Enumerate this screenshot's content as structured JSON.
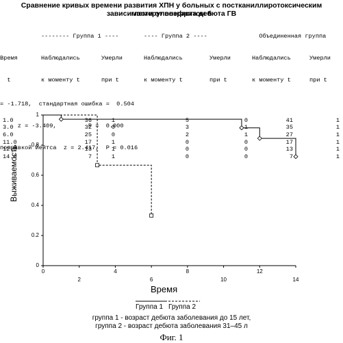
{
  "title_line1": "Сравнение кривых времени развития ХПН у больных с постканиллиротоксическим гломерулонефритом  в",
  "title_line2": "зависимости от возраста дебюта ГВ",
  "table": {
    "group_header": [
      "",
      "-------- Группа 1 ----",
      "",
      "---- Группа 2 ----",
      "",
      "  Объединенная группа",
      ""
    ],
    "header1": [
      "Время",
      "Наблюдались",
      "Умерли",
      "Наблюдались",
      "Умерли",
      "Наблюдались",
      "Умерли"
    ],
    "header2": [
      "  t",
      "к моменту t",
      "при t",
      "к моменту t",
      "при t",
      "к моменту t",
      "при t"
    ],
    "rows": [
      [
        "1.0",
        "36",
        "1",
        "5",
        "0",
        "41",
        "1"
      ],
      [
        "3.0",
        "32",
        "0",
        "3",
        "1",
        "35",
        "1"
      ],
      [
        "6.0",
        "25",
        "0",
        "2",
        "1",
        "27",
        "1"
      ],
      [
        "11.0",
        "17",
        "1",
        "0",
        "0",
        "17",
        "1"
      ],
      [
        "12.0",
        "13",
        "1",
        "0",
        "0",
        "13",
        "1"
      ],
      [
        "14.0",
        "7",
        "1",
        "0",
        "0",
        "7",
        "1"
      ]
    ]
  },
  "stats": {
    "line1": "= -1.718,  стандартная ошибка =  0.504",
    "line2": "     z = -3.409,         P =  0.000",
    "line3": "поправкой Йейтса  z = 2.417,  P = 0.016"
  },
  "chart_data": {
    "type": "line",
    "xlabel": "Время",
    "ylabel": "Выживаемость",
    "x_ticks": [
      "0",
      "2",
      "4",
      "6",
      "8",
      "10",
      "12",
      "14"
    ],
    "y_ticks": [
      "1",
      "0.8",
      "0.6",
      "0.4",
      "0.2",
      "0"
    ],
    "xlim": [
      0,
      14
    ],
    "ylim": [
      0,
      1
    ],
    "series": [
      {
        "name": "Группа 1",
        "style": "solid",
        "points": [
          [
            0,
            1
          ],
          [
            1,
            0.972
          ],
          [
            11,
            0.915
          ],
          [
            12,
            0.845
          ],
          [
            14,
            0.724
          ]
        ]
      },
      {
        "name": "Группа 2",
        "style": "dashed",
        "points": [
          [
            0,
            1
          ],
          [
            3,
            0.667
          ],
          [
            6,
            0.333
          ]
        ]
      }
    ]
  },
  "legend": {
    "g1": "Группа 1",
    "g2": "Группа 2"
  },
  "note1": "группа 1 - возраст дебюта заболевания до 15 лет,",
  "note2": "группа 2 - возраст дебюта заболевания 31–45 л",
  "figure_label": "Фиг. 1"
}
